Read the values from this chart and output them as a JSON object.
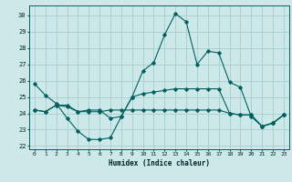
{
  "xlabel": "Humidex (Indice chaleur)",
  "background_color": "#cce8e8",
  "grid_color": "#aacccc",
  "line_color": "#006060",
  "ylim": [
    21.8,
    30.6
  ],
  "xlim": [
    -0.5,
    23.5
  ],
  "yticks": [
    22,
    23,
    24,
    25,
    26,
    27,
    28,
    29,
    30
  ],
  "xticks": [
    0,
    1,
    2,
    3,
    4,
    5,
    6,
    7,
    8,
    9,
    10,
    11,
    12,
    13,
    14,
    15,
    16,
    17,
    18,
    19,
    20,
    21,
    22,
    23
  ],
  "series": [
    [
      25.8,
      25.1,
      24.6,
      23.7,
      22.9,
      22.4,
      22.4,
      22.5,
      23.8,
      25.0,
      26.6,
      27.1,
      28.8,
      30.1,
      29.6,
      27.0,
      27.8,
      27.7,
      25.9,
      25.6,
      23.8,
      23.2,
      23.4,
      23.9
    ],
    [
      24.2,
      24.1,
      24.5,
      24.5,
      24.1,
      24.2,
      24.2,
      23.7,
      23.8,
      25.0,
      25.2,
      25.3,
      25.4,
      25.5,
      25.5,
      25.5,
      25.5,
      25.5,
      24.0,
      23.9,
      23.9,
      23.2,
      23.4,
      23.9
    ],
    [
      24.2,
      24.1,
      24.5,
      24.4,
      24.1,
      24.1,
      24.1,
      24.2,
      24.2,
      24.2,
      24.2,
      24.2,
      24.2,
      24.2,
      24.2,
      24.2,
      24.2,
      24.2,
      24.0,
      23.9,
      23.9,
      23.2,
      23.4,
      23.9
    ]
  ]
}
